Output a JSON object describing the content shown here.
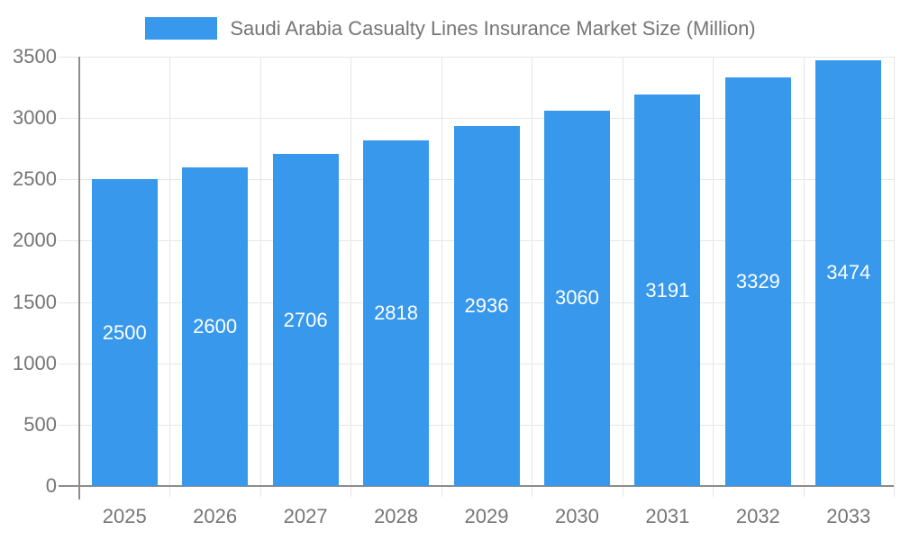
{
  "chart_data": {
    "type": "bar",
    "title": "Saudi Arabia Casualty Lines Insurance Market Size (Million)",
    "categories": [
      "2025",
      "2026",
      "2027",
      "2028",
      "2029",
      "2030",
      "2031",
      "2032",
      "2033"
    ],
    "values": [
      2500,
      2600,
      2706,
      2818,
      2936,
      3060,
      3191,
      3329,
      3474
    ],
    "series": [
      {
        "name": "Saudi Arabia Casualty Lines Insurance Market Size (Million)",
        "values": [
          2500,
          2600,
          2706,
          2818,
          2936,
          3060,
          3191,
          3329,
          3474
        ]
      }
    ],
    "xlabel": "",
    "ylabel": "",
    "ylim": [
      0,
      3500
    ],
    "yticks": [
      0,
      500,
      1000,
      1500,
      2000,
      2500,
      3000,
      3500
    ],
    "grid": true,
    "legend_position": "top-center",
    "value_label_position": "inside-center",
    "colors": {
      "bar": "#3898EC",
      "value_label": "#FFFFFF",
      "axis_text": "#757575",
      "grid_line": "#E6E6E6",
      "axis_line": "#8C8C8C"
    }
  }
}
